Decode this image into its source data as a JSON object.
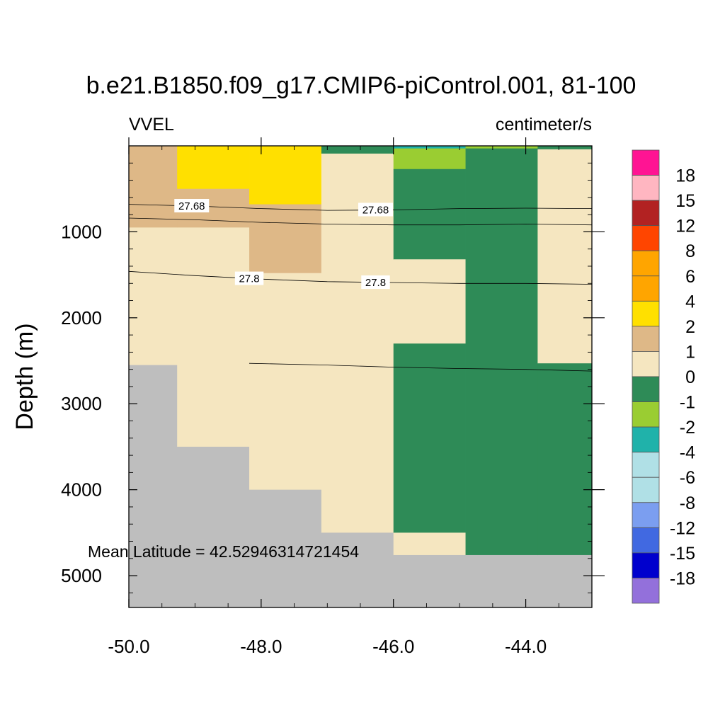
{
  "chart_data": {
    "type": "heatmap",
    "title": "b.e21.B1850.f09_g17.CMIP6-piControl.001, 81-100",
    "left_label": "VVEL",
    "right_label": "centimeter/s",
    "ylabel": "Depth (m)",
    "xlabel": "",
    "annotation": "Mean Latitude = 42.52946314721454",
    "xlim": [
      -50.0,
      -43.0
    ],
    "ylim": [
      5370,
      0
    ],
    "x_ticks": [
      -50.0,
      -48.0,
      -46.0,
      -44.0
    ],
    "x_tick_labels": [
      "-50.0",
      "-48.0",
      "-46.0",
      "-44.0"
    ],
    "y_ticks": [
      1000,
      2000,
      3000,
      4000,
      5000
    ],
    "y_tick_labels": [
      "1000",
      "2000",
      "3000",
      "4000",
      "5000"
    ],
    "land_color": "#bebebe",
    "column_edges": [
      -50.0,
      -49.27,
      -48.18,
      -47.09,
      -46.0,
      -44.91,
      -43.82,
      -43.0
    ],
    "cells": [
      {
        "x0": -50.0,
        "x1": -49.27,
        "y0": 0,
        "y1": 950,
        "color": "#deb887"
      },
      {
        "x0": -50.0,
        "x1": -49.27,
        "y0": 950,
        "y1": 2550,
        "color": "#f5e6c0"
      },
      {
        "x0": -50.0,
        "x1": -49.27,
        "y0": 2550,
        "y1": 5370,
        "color": "#bebebe"
      },
      {
        "x0": -49.27,
        "x1": -48.18,
        "y0": 0,
        "y1": 500,
        "color": "#ffe000"
      },
      {
        "x0": -49.27,
        "x1": -48.18,
        "y0": 500,
        "y1": 950,
        "color": "#deb887"
      },
      {
        "x0": -49.27,
        "x1": -48.18,
        "y0": 950,
        "y1": 3500,
        "color": "#f5e6c0"
      },
      {
        "x0": -49.27,
        "x1": -48.18,
        "y0": 3500,
        "y1": 5370,
        "color": "#bebebe"
      },
      {
        "x0": -48.18,
        "x1": -47.09,
        "y0": 0,
        "y1": 680,
        "color": "#ffe000"
      },
      {
        "x0": -48.18,
        "x1": -47.09,
        "y0": 680,
        "y1": 1480,
        "color": "#deb887"
      },
      {
        "x0": -48.18,
        "x1": -47.09,
        "y0": 1480,
        "y1": 4000,
        "color": "#f5e6c0"
      },
      {
        "x0": -48.18,
        "x1": -47.09,
        "y0": 4000,
        "y1": 5370,
        "color": "#bebebe"
      },
      {
        "x0": -47.09,
        "x1": -46.0,
        "y0": 0,
        "y1": 90,
        "color": "#2e8b57"
      },
      {
        "x0": -47.09,
        "x1": -46.0,
        "y0": 90,
        "y1": 4500,
        "color": "#f5e6c0"
      },
      {
        "x0": -47.09,
        "x1": -46.0,
        "y0": 4500,
        "y1": 5370,
        "color": "#bebebe"
      },
      {
        "x0": -46.0,
        "x1": -44.91,
        "y0": 0,
        "y1": 30,
        "color": "#20b2aa"
      },
      {
        "x0": -46.0,
        "x1": -44.91,
        "y0": 30,
        "y1": 270,
        "color": "#9acd32"
      },
      {
        "x0": -46.0,
        "x1": -44.91,
        "y0": 270,
        "y1": 1320,
        "color": "#2e8b57"
      },
      {
        "x0": -46.0,
        "x1": -44.91,
        "y0": 1320,
        "y1": 2300,
        "color": "#f5e6c0"
      },
      {
        "x0": -46.0,
        "x1": -44.91,
        "y0": 2300,
        "y1": 4500,
        "color": "#2e8b57"
      },
      {
        "x0": -46.0,
        "x1": -44.91,
        "y0": 4500,
        "y1": 4760,
        "color": "#f5e6c0"
      },
      {
        "x0": -46.0,
        "x1": -44.91,
        "y0": 4760,
        "y1": 5370,
        "color": "#bebebe"
      },
      {
        "x0": -44.91,
        "x1": -43.82,
        "y0": 0,
        "y1": 30,
        "color": "#9acd32"
      },
      {
        "x0": -44.91,
        "x1": -43.82,
        "y0": 30,
        "y1": 4760,
        "color": "#2e8b57"
      },
      {
        "x0": -44.91,
        "x1": -43.82,
        "y0": 4760,
        "y1": 5370,
        "color": "#bebebe"
      },
      {
        "x0": -43.82,
        "x1": -43.0,
        "y0": 0,
        "y1": 40,
        "color": "#2e8b57"
      },
      {
        "x0": -43.82,
        "x1": -43.0,
        "y0": 40,
        "y1": 2530,
        "color": "#f5e6c0"
      },
      {
        "x0": -43.82,
        "x1": -43.0,
        "y0": 2530,
        "y1": 4760,
        "color": "#2e8b57"
      },
      {
        "x0": -43.82,
        "x1": -43.0,
        "y0": 4760,
        "y1": 5370,
        "color": "#bebebe"
      }
    ],
    "contours": [
      {
        "points": [
          [
            -50.0,
            680
          ],
          [
            -49.0,
            700
          ],
          [
            -48.0,
            730
          ],
          [
            -47.0,
            750
          ],
          [
            -46.0,
            745
          ],
          [
            -45.0,
            730
          ],
          [
            -44.0,
            725
          ],
          [
            -43.0,
            730
          ]
        ]
      },
      {
        "points": [
          [
            -50.0,
            840
          ],
          [
            -49.0,
            860
          ],
          [
            -48.0,
            890
          ],
          [
            -47.0,
            910
          ],
          [
            -46.0,
            920
          ],
          [
            -45.0,
            920
          ],
          [
            -44.0,
            910
          ],
          [
            -43.0,
            920
          ]
        ]
      },
      {
        "points": [
          [
            -50.0,
            1460
          ],
          [
            -49.0,
            1510
          ],
          [
            -48.0,
            1550
          ],
          [
            -47.0,
            1580
          ],
          [
            -46.0,
            1590
          ],
          [
            -45.0,
            1600
          ],
          [
            -44.0,
            1600
          ],
          [
            -43.0,
            1610
          ]
        ]
      },
      {
        "points": [
          [
            -48.18,
            2530
          ],
          [
            -47.0,
            2550
          ],
          [
            -46.0,
            2575
          ],
          [
            -45.0,
            2590
          ],
          [
            -44.0,
            2600
          ],
          [
            -43.0,
            2620
          ]
        ]
      }
    ],
    "contour_labels": [
      {
        "text": "27.68",
        "x": -49.05,
        "y": 700
      },
      {
        "text": "27.68",
        "x": -46.27,
        "y": 745
      },
      {
        "text": "27.8",
        "x": -48.18,
        "y": 1545
      },
      {
        "text": "27.8",
        "x": -46.27,
        "y": 1590
      }
    ],
    "colorbar": {
      "colors": [
        "#ff1493",
        "#ffb6c1",
        "#b22222",
        "#ff4500",
        "#ffa500",
        "#ffa500",
        "#ffe000",
        "#deb887",
        "#f5e6c0",
        "#2e8b57",
        "#9acd32",
        "#20b2aa",
        "#b0e0e6",
        "#b0e0e6",
        "#7b9ef0",
        "#4169e1",
        "#0000cd",
        "#9370db"
      ],
      "labels": [
        "18",
        "15",
        "12",
        "8",
        "6",
        "4",
        "2",
        "1",
        "0",
        "-1",
        "-2",
        "-4",
        "-6",
        "-8",
        "-12",
        "-15",
        "-18"
      ]
    }
  }
}
